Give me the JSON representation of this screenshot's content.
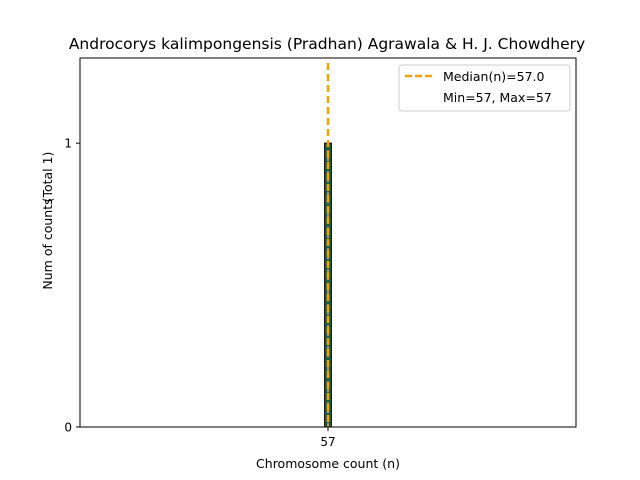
{
  "chart_data": {
    "type": "bar",
    "title": "Androcorys kalimpongensis (Pradhan) Agrawala & H. J. Chowdhery",
    "xlabel": "Chromosome count (n)",
    "ylabel": "Num of counts",
    "ylabel_total": "(Total 1)",
    "categories": [
      "57"
    ],
    "values": [
      1
    ],
    "x_ticks": [
      "57"
    ],
    "y_ticks": [
      "0",
      "1"
    ],
    "ylim": [
      0,
      1.3
    ],
    "xlim": [
      48.2,
      65.8
    ],
    "median": 57.0,
    "legend": {
      "placement": "top-right",
      "median_label": "Median(n)=57.0",
      "range_label": "Min=57, Max=57"
    },
    "colors": {
      "bar_fill": "#1f5f3f",
      "bar_edge": "#000000",
      "bar_hatch": "#e8a060",
      "median_line": "#f5a300"
    },
    "grid": false
  }
}
